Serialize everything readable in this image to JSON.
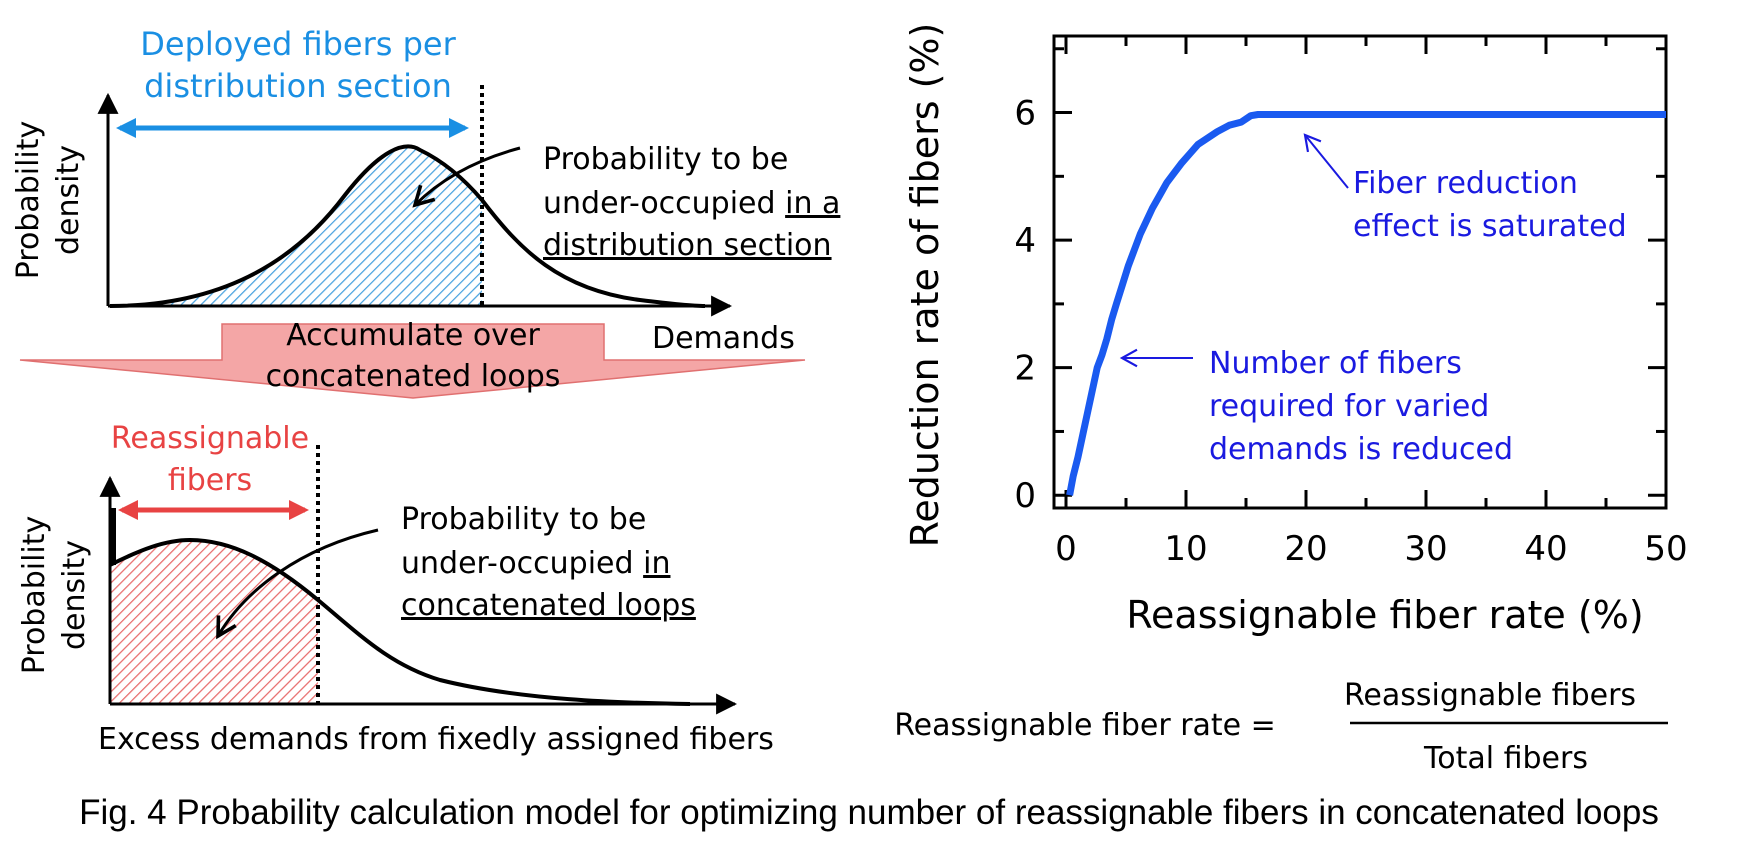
{
  "figure": {
    "caption": "Fig. 4 Probability calculation model for optimizing number of reassignable fibers in concatenated loops"
  },
  "top_diagram": {
    "arrow_label_line1": "Deployed fibers per",
    "arrow_label_line2": "distribution section",
    "ylabel_line1": "Probability",
    "ylabel_line2": "density",
    "xlabel": "Demands",
    "annotation_line1": "Probability to be",
    "annotation_line2_plain": "under-occupied ",
    "annotation_line2_underlined": "in a",
    "annotation_line3_underlined": "distribution section",
    "arrow_color": "#1a8fe3",
    "fill_color": "#4aa3df"
  },
  "transition": {
    "line1": "Accumulate over",
    "line2": "concatenated loops",
    "color": "#f4a6a6"
  },
  "bottom_diagram": {
    "arrow_label_line1": "Reassignable",
    "arrow_label_line2": "fibers",
    "ylabel_line1": "Probability",
    "ylabel_line2": "density",
    "xlabel": "Excess demands from fixedly assigned fibers",
    "annotation_line1": "Probability to be",
    "annotation_line2_plain": "under-occupied ",
    "annotation_line2_underlined": "in",
    "annotation_line3_underlined": "concatenated loops",
    "arrow_color": "#e84343",
    "fill_color": "#e86c6c"
  },
  "formula": {
    "lhs": "Reassignable fiber rate =",
    "numerator": "Reassignable fibers",
    "denominator": "Total fibers"
  },
  "chart_data": {
    "type": "line",
    "xlabel": "Reassignable fiber rate (%)",
    "ylabel": "Reduction rate of fibers (%)",
    "xlim": [
      -1,
      50
    ],
    "ylim": [
      -0.2,
      7.2
    ],
    "xticks": [
      0,
      10,
      20,
      30,
      40,
      50
    ],
    "yticks": [
      0,
      2,
      4,
      6
    ],
    "line_color": "#1a5af0",
    "annotation_color": "#1a1ae0",
    "series": [
      {
        "x": [
          0.3,
          0.6,
          1.0,
          1.4,
          1.8,
          2.2,
          2.6,
          3.0,
          3.4,
          3.8,
          4.2,
          4.7,
          5.2,
          5.7,
          6.2,
          6.7,
          7.2,
          7.8,
          8.4,
          9.0,
          9.6,
          10.3,
          11.0,
          11.8,
          12.6,
          13.6,
          14.6,
          15.4,
          16,
          20,
          30,
          40,
          50
        ],
        "y": [
          0,
          0.3,
          0.6,
          0.95,
          1.3,
          1.65,
          2.0,
          2.2,
          2.45,
          2.75,
          3.0,
          3.3,
          3.6,
          3.85,
          4.1,
          4.3,
          4.5,
          4.7,
          4.9,
          5.05,
          5.2,
          5.35,
          5.5,
          5.6,
          5.7,
          5.8,
          5.85,
          5.95,
          5.97,
          5.97,
          5.97,
          5.97,
          5.97
        ]
      }
    ],
    "annotations": [
      {
        "line1": "Fiber reduction",
        "line2": "effect is saturated",
        "line3": "",
        "points_to": [
          19.8,
          5.65
        ]
      },
      {
        "line1": "Number of fibers",
        "line2": "required for varied",
        "line3": "demands is reduced",
        "points_to": [
          4.5,
          2.15
        ]
      }
    ]
  }
}
